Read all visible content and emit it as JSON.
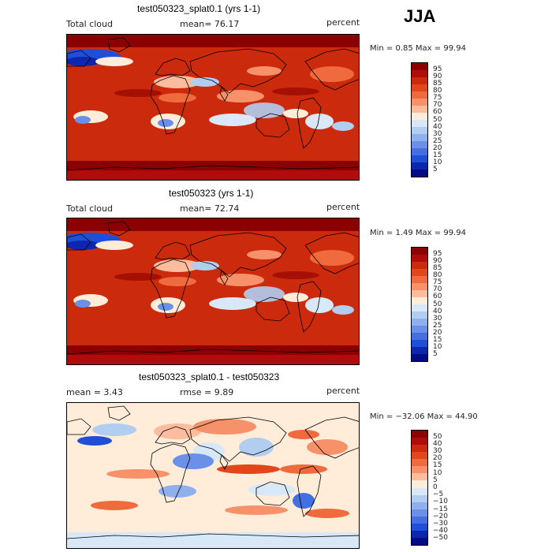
{
  "season": "JJA",
  "panels": [
    {
      "title": "test050323_splat0.1 (yrs 1-1)",
      "left_label": "Total cloud",
      "mid_label": "mean=  76.17",
      "units": "percent",
      "minmax": "Min =   0.85 Max =  99.94",
      "colorbar": {
        "labels": [
          "95",
          "90",
          "85",
          "80",
          "75",
          "70",
          "60",
          "50",
          "40",
          "30",
          "25",
          "20",
          "15",
          "10",
          "5"
        ],
        "colors": [
          "#8b0000",
          "#b10b0b",
          "#cc2a0c",
          "#e2461a",
          "#ef6a3d",
          "#f6916a",
          "#fbbd9e",
          "#ffecd9",
          "#d8e8f7",
          "#b1cdf0",
          "#8fb0ec",
          "#6a90e8",
          "#446fe2",
          "#1f4ed9",
          "#0c26b0",
          "#000c84"
        ]
      },
      "map_type": "high"
    },
    {
      "title": "test050323 (yrs 1-1)",
      "left_label": "Total cloud",
      "mid_label": "mean=  72.74",
      "units": "percent",
      "minmax": "Min =   1.49 Max =  99.94",
      "colorbar": {
        "labels": [
          "95",
          "90",
          "85",
          "80",
          "75",
          "70",
          "60",
          "50",
          "40",
          "30",
          "25",
          "20",
          "15",
          "10",
          "5"
        ],
        "colors": [
          "#8b0000",
          "#b10b0b",
          "#cc2a0c",
          "#e2461a",
          "#ef6a3d",
          "#f6916a",
          "#fbbd9e",
          "#ffecd9",
          "#d8e8f7",
          "#b1cdf0",
          "#8fb0ec",
          "#6a90e8",
          "#446fe2",
          "#1f4ed9",
          "#0c26b0",
          "#000c84"
        ]
      },
      "map_type": "high"
    },
    {
      "title": "test050323_splat0.1 - test050323",
      "left_label": "mean =    3.43",
      "mid_label": "rmse =    9.89",
      "units": "percent",
      "minmax": "Min = −32.06 Max =  44.90",
      "colorbar": {
        "labels": [
          "50",
          "40",
          "30",
          "20",
          "15",
          "10",
          "5",
          "0",
          "−5",
          "−10",
          "−15",
          "−20",
          "−30",
          "−40",
          "−50"
        ],
        "colors": [
          "#8b0000",
          "#b10b0b",
          "#cc2a0c",
          "#e2461a",
          "#ef6a3d",
          "#f6916a",
          "#fbbd9e",
          "#ffecd9",
          "#d8e8f7",
          "#b1cdf0",
          "#8fb0ec",
          "#6a90e8",
          "#446fe2",
          "#1f4ed9",
          "#0c26b0",
          "#000c84"
        ]
      },
      "map_type": "diff"
    }
  ]
}
